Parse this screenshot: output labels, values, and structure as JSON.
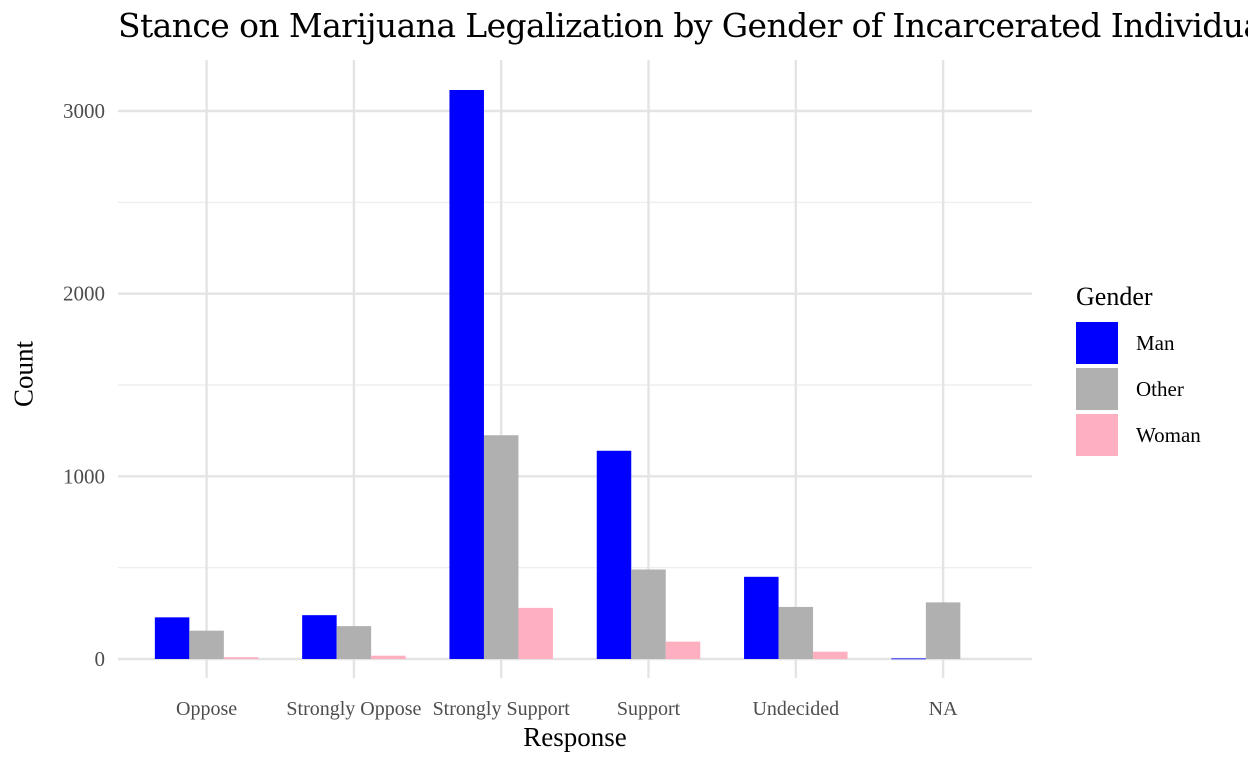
{
  "chart_data": {
    "type": "bar",
    "title": "Stance on Marijuana Legalization by Gender of Incarcerated Individuals",
    "xlabel": "Response",
    "ylabel": "Count",
    "categories": [
      "Oppose",
      "Strongly Oppose",
      "Strongly Support",
      "Support",
      "Undecided",
      "NA"
    ],
    "series": [
      {
        "name": "Man",
        "color": "#0000ff",
        "values": [
          228,
          240,
          3115,
          1140,
          450,
          3
        ]
      },
      {
        "name": "Other",
        "color": "#b0b0b0",
        "values": [
          155,
          180,
          1225,
          490,
          285,
          310
        ]
      },
      {
        "name": "Woman",
        "color": "#ffb0c0",
        "values": [
          10,
          18,
          280,
          95,
          40,
          null
        ]
      }
    ],
    "ylim": [
      0,
      3300
    ],
    "yticks": [
      0,
      1000,
      2000,
      3000
    ],
    "ytick_labels": [
      "0",
      "1000",
      "2000",
      "3000"
    ],
    "grid": true,
    "legend": {
      "title": "Gender",
      "position": "right"
    }
  }
}
